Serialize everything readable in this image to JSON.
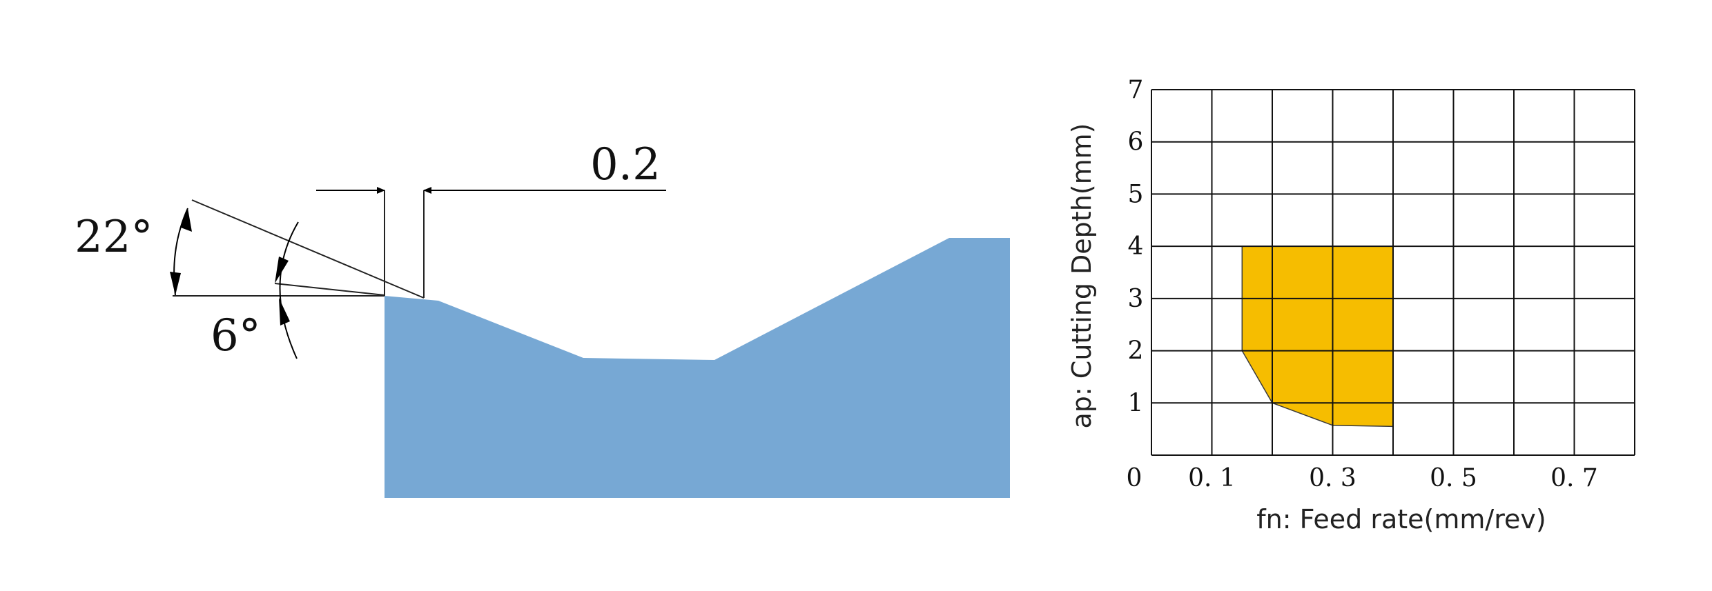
{
  "geometry_diagram": {
    "dimension_width": "0.2",
    "angle_top": "22°",
    "angle_bottom": "6°",
    "fill_color": "#77a8d4"
  },
  "chart_data": {
    "type": "area",
    "xlabel": "fn: Feed rate(mm/rev)",
    "ylabel": "ap: Cutting Depth(mm)",
    "xlim": [
      0,
      0.8
    ],
    "ylim": [
      0,
      7
    ],
    "x_tick_labels": [
      "0. 1",
      "0. 3",
      "0. 5",
      "0. 7"
    ],
    "x_tick_values": [
      0.1,
      0.3,
      0.5,
      0.7
    ],
    "y_tick_labels": [
      "1",
      "2",
      "3",
      "4",
      "5",
      "6",
      "7"
    ],
    "y_tick_values": [
      1,
      2,
      3,
      4,
      5,
      6,
      7
    ],
    "origin_label": "0",
    "grid": true,
    "region_color": "#f6bd00",
    "region": [
      {
        "x": 0.15,
        "y": 4.0
      },
      {
        "x": 0.4,
        "y": 4.0
      },
      {
        "x": 0.4,
        "y": 0.55
      },
      {
        "x": 0.3,
        "y": 0.57
      },
      {
        "x": 0.2,
        "y": 1.0
      },
      {
        "x": 0.15,
        "y": 2.0
      }
    ]
  }
}
